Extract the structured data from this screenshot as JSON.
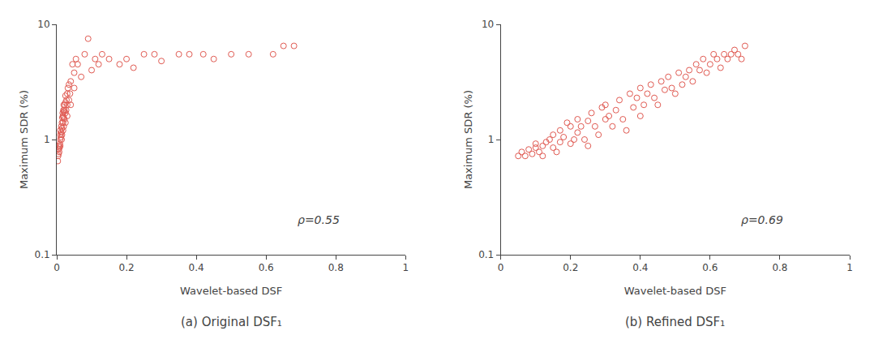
{
  "chart_data": [
    {
      "type": "scatter",
      "title": "(a) Original DSF₁",
      "annotations": [
        "ρ=0.55"
      ],
      "xlabel": "Wavelet-based DSF",
      "ylabel": "Maximum SDR (%)",
      "xlim": [
        0,
        1
      ],
      "ylim": [
        0.1,
        10
      ],
      "xticks": [
        0,
        0.2,
        0.4,
        0.6,
        0.8,
        1
      ],
      "yticks": [
        0.1,
        1,
        10
      ],
      "log": "y",
      "grid": false,
      "color": "#e05a52",
      "marker": "circle-open",
      "x": [
        0.003,
        0.004,
        0.005,
        0.005,
        0.006,
        0.007,
        0.008,
        0.009,
        0.01,
        0.01,
        0.01,
        0.01,
        0.012,
        0.013,
        0.013,
        0.014,
        0.015,
        0.015,
        0.015,
        0.016,
        0.017,
        0.018,
        0.018,
        0.018,
        0.019,
        0.02,
        0.02,
        0.02,
        0.02,
        0.022,
        0.022,
        0.023,
        0.025,
        0.025,
        0.025,
        0.025,
        0.027,
        0.028,
        0.03,
        0.03,
        0.03,
        0.032,
        0.035,
        0.035,
        0.038,
        0.04,
        0.04,
        0.045,
        0.05,
        0.05,
        0.055,
        0.06,
        0.07,
        0.08,
        0.09,
        0.1,
        0.11,
        0.12,
        0.13,
        0.15,
        0.18,
        0.2,
        0.22,
        0.25,
        0.28,
        0.3,
        0.35,
        0.38,
        0.42,
        0.45,
        0.5,
        0.55,
        0.62,
        0.65,
        0.68
      ],
      "values": [
        0.65,
        0.72,
        0.75,
        0.82,
        0.88,
        0.78,
        0.85,
        0.92,
        0.88,
        1.0,
        1.1,
        1.2,
        1.05,
        1.15,
        1.3,
        1.0,
        1.1,
        1.25,
        1.4,
        1.55,
        1.7,
        1.2,
        1.4,
        1.6,
        1.8,
        1.3,
        1.55,
        1.75,
        2.0,
        1.5,
        1.8,
        2.0,
        1.4,
        1.7,
        2.1,
        2.4,
        1.8,
        2.2,
        1.6,
        2.0,
        2.5,
        2.8,
        2.2,
        3.0,
        2.5,
        2.0,
        3.2,
        4.5,
        2.8,
        3.8,
        5.0,
        4.5,
        3.5,
        5.5,
        7.5,
        4.0,
        5.0,
        4.5,
        5.5,
        5.0,
        4.5,
        5.0,
        4.2,
        5.5,
        5.5,
        4.8,
        5.5,
        5.5,
        5.5,
        5.0,
        5.5,
        5.5,
        5.5,
        6.5,
        6.5
      ]
    },
    {
      "type": "scatter",
      "title": "(b) Refined DSF₁",
      "annotations": [
        "ρ=0.69"
      ],
      "xlabel": "Wavelet-based DSF",
      "ylabel": "Maximum SDR (%)",
      "xlim": [
        0,
        1
      ],
      "ylim": [
        0.1,
        10
      ],
      "xticks": [
        0,
        0.2,
        0.4,
        0.6,
        0.8,
        1
      ],
      "yticks": [
        0.1,
        1,
        10
      ],
      "log": "y",
      "grid": false,
      "color": "#e05a52",
      "marker": "circle-open",
      "x": [
        0.05,
        0.06,
        0.07,
        0.08,
        0.09,
        0.1,
        0.1,
        0.11,
        0.12,
        0.12,
        0.13,
        0.14,
        0.15,
        0.15,
        0.16,
        0.17,
        0.17,
        0.18,
        0.19,
        0.2,
        0.2,
        0.21,
        0.22,
        0.22,
        0.23,
        0.24,
        0.25,
        0.25,
        0.26,
        0.27,
        0.28,
        0.29,
        0.3,
        0.3,
        0.31,
        0.32,
        0.33,
        0.34,
        0.35,
        0.36,
        0.37,
        0.38,
        0.39,
        0.4,
        0.4,
        0.41,
        0.42,
        0.43,
        0.44,
        0.45,
        0.46,
        0.47,
        0.48,
        0.49,
        0.5,
        0.51,
        0.52,
        0.53,
        0.54,
        0.55,
        0.56,
        0.57,
        0.58,
        0.59,
        0.6,
        0.61,
        0.62,
        0.63,
        0.64,
        0.65,
        0.66,
        0.67,
        0.68,
        0.69,
        0.7
      ],
      "values": [
        0.72,
        0.78,
        0.72,
        0.82,
        0.75,
        0.85,
        0.92,
        0.78,
        0.72,
        0.88,
        0.95,
        1.0,
        0.85,
        1.1,
        0.78,
        0.95,
        1.2,
        1.05,
        1.4,
        0.92,
        1.3,
        1.0,
        1.15,
        1.5,
        1.3,
        1.0,
        0.88,
        1.45,
        1.7,
        1.3,
        1.1,
        1.9,
        1.5,
        2.0,
        1.6,
        1.3,
        1.8,
        2.2,
        1.5,
        1.2,
        2.5,
        1.9,
        2.3,
        1.6,
        2.8,
        2.0,
        2.5,
        3.0,
        2.3,
        2.0,
        3.2,
        2.7,
        3.5,
        2.8,
        2.5,
        3.8,
        3.0,
        3.5,
        4.0,
        3.2,
        4.5,
        4.0,
        5.0,
        3.8,
        4.5,
        5.5,
        5.0,
        4.2,
        5.5,
        5.0,
        5.5,
        6.0,
        5.5,
        5.0,
        6.5
      ]
    }
  ]
}
